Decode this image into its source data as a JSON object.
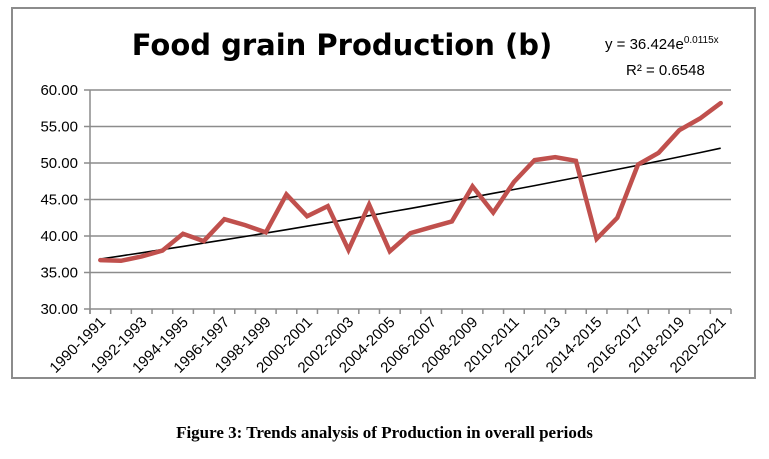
{
  "chart_data": {
    "type": "line",
    "title": "Food grain Production (b)",
    "xlabel": "",
    "ylabel": "",
    "ylim": [
      30,
      60
    ],
    "yticks": [
      "30.00",
      "35.00",
      "40.00",
      "45.00",
      "50.00",
      "55.00",
      "60.00"
    ],
    "ytick_values": [
      30,
      35,
      40,
      45,
      50,
      55,
      60
    ],
    "grid": true,
    "legend": "none",
    "categories": [
      "1990-1991",
      "1991-1992",
      "1992-1993",
      "1993-1994",
      "1994-1995",
      "1995-1996",
      "1996-1997",
      "1997-1998",
      "1998-1999",
      "1999-2000",
      "2000-2001",
      "2001-2002",
      "2002-2003",
      "2003-2004",
      "2004-2005",
      "2005-2006",
      "2006-2007",
      "2007-2008",
      "2008-2009",
      "2009-2010",
      "2010-2011",
      "2011-2012",
      "2012-2013",
      "2013-2014",
      "2014-2015",
      "2015-2016",
      "2016-2017",
      "2017-2018",
      "2018-2019",
      "2019-2020",
      "2020-2021"
    ],
    "xtick_labels_shown": [
      "1990-1991",
      "1992-1993",
      "1994-1995",
      "1996-1997",
      "1998-1999",
      "2000-2001",
      "2002-2003",
      "2004-2005",
      "2006-2007",
      "2008-2009",
      "2010-2011",
      "2012-2013",
      "2014-2015",
      "2016-2017",
      "2018-2019",
      "2020-2021"
    ],
    "series": [
      {
        "name": "Food grain Production",
        "color": "#c0504d",
        "values": [
          36.7,
          36.6,
          37.2,
          38.0,
          40.3,
          39.3,
          42.3,
          41.5,
          40.5,
          45.7,
          42.7,
          44.1,
          38.1,
          44.3,
          37.9,
          40.4,
          41.2,
          42.0,
          46.8,
          43.2,
          47.4,
          50.4,
          50.8,
          50.3,
          39.6,
          42.5,
          49.8,
          51.4,
          54.5,
          56.1,
          58.2
        ]
      }
    ],
    "trendline": {
      "type": "exponential",
      "a": 36.424,
      "b": 0.0115,
      "color": "#000000",
      "equation_prefix": "y = 36.424e",
      "equation_exponent": "0.0115x",
      "r2_label": "R² = 0.6548"
    }
  },
  "caption": "Figure 3: Trends analysis of Production in overall periods"
}
